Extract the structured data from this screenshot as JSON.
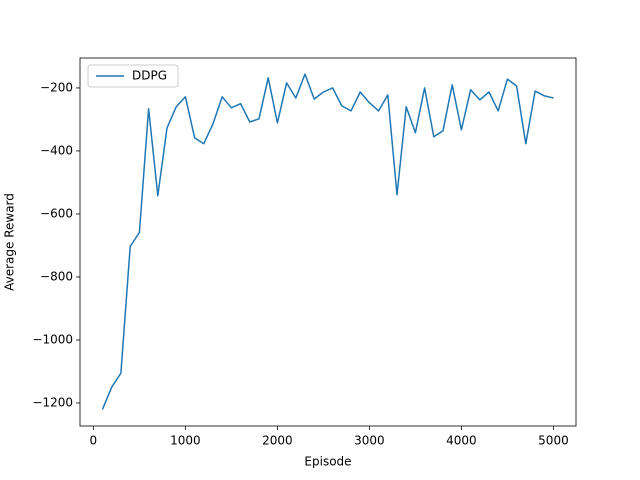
{
  "chart_data": {
    "type": "line",
    "x_label": "Episode",
    "y_label": "Average Reward",
    "x": [
      100,
      200,
      300,
      400,
      500,
      600,
      700,
      800,
      900,
      1000,
      1100,
      1200,
      1300,
      1400,
      1500,
      1600,
      1700,
      1800,
      1900,
      2000,
      2100,
      2200,
      2300,
      2400,
      2500,
      2600,
      2700,
      2800,
      2900,
      3000,
      3100,
      3200,
      3300,
      3400,
      3500,
      3600,
      3700,
      3800,
      3900,
      4000,
      4100,
      4200,
      4300,
      4400,
      4500,
      4600,
      4700,
      4800,
      4900,
      5000
    ],
    "series": [
      {
        "name": "DDPG",
        "color": "#1f77b4",
        "values": [
          -1220,
          -1150,
          -1105,
          -703,
          -659,
          -266,
          -542,
          -327,
          -260,
          -228,
          -358,
          -377,
          -314,
          -228,
          -263,
          -250,
          -308,
          -298,
          -168,
          -311,
          -184,
          -232,
          -156,
          -235,
          -213,
          -200,
          -257,
          -273,
          -213,
          -247,
          -273,
          -222,
          -539,
          -260,
          -342,
          -200,
          -355,
          -336,
          -190,
          -333,
          -206,
          -238,
          -213,
          -273,
          -172,
          -194,
          -377,
          -210,
          -225,
          -232
        ]
      }
    ],
    "xlim": [
      -145,
      5245
    ],
    "ylim": [
      -1273,
      -105
    ],
    "xticks": [
      0,
      1000,
      2000,
      3000,
      4000,
      5000
    ],
    "yticks": [
      {
        "value": -1200,
        "label": "−1200"
      },
      {
        "value": -1000,
        "label": "−1000"
      },
      {
        "value": -800,
        "label": "−800"
      },
      {
        "value": -600,
        "label": "−600"
      },
      {
        "value": -400,
        "label": "−400"
      },
      {
        "value": -200,
        "label": "−200"
      }
    ],
    "legend": "upper left"
  }
}
